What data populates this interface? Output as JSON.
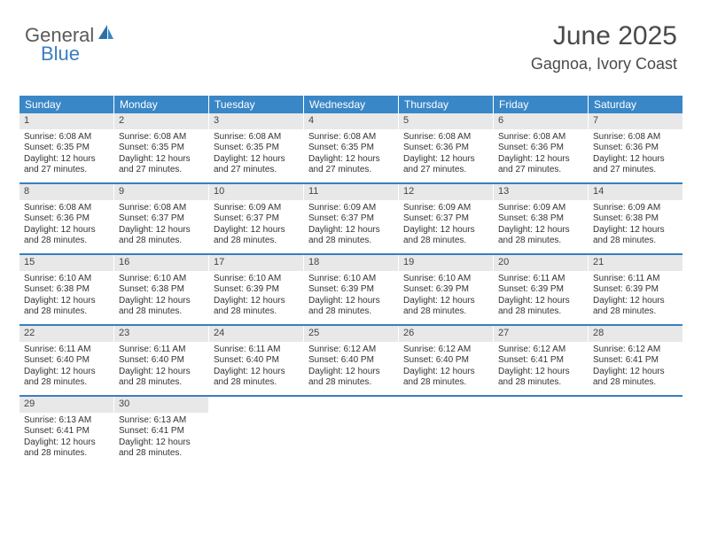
{
  "logo": {
    "general": "General",
    "blue": "Blue"
  },
  "header": {
    "month": "June 2025",
    "location": "Gagnoa, Ivory Coast"
  },
  "colors": {
    "header_bg": "#3a87c7",
    "header_text": "#ffffff",
    "daynum_bg": "#e8e8e8",
    "divider": "#3a7fbf",
    "logo_blue": "#3a7fbf",
    "text": "#333333"
  },
  "dow": [
    "Sunday",
    "Monday",
    "Tuesday",
    "Wednesday",
    "Thursday",
    "Friday",
    "Saturday"
  ],
  "weeks": [
    [
      {
        "n": "1",
        "sr": "6:08 AM",
        "ss": "6:35 PM",
        "dl": "12 hours and 27 minutes."
      },
      {
        "n": "2",
        "sr": "6:08 AM",
        "ss": "6:35 PM",
        "dl": "12 hours and 27 minutes."
      },
      {
        "n": "3",
        "sr": "6:08 AM",
        "ss": "6:35 PM",
        "dl": "12 hours and 27 minutes."
      },
      {
        "n": "4",
        "sr": "6:08 AM",
        "ss": "6:35 PM",
        "dl": "12 hours and 27 minutes."
      },
      {
        "n": "5",
        "sr": "6:08 AM",
        "ss": "6:36 PM",
        "dl": "12 hours and 27 minutes."
      },
      {
        "n": "6",
        "sr": "6:08 AM",
        "ss": "6:36 PM",
        "dl": "12 hours and 27 minutes."
      },
      {
        "n": "7",
        "sr": "6:08 AM",
        "ss": "6:36 PM",
        "dl": "12 hours and 27 minutes."
      }
    ],
    [
      {
        "n": "8",
        "sr": "6:08 AM",
        "ss": "6:36 PM",
        "dl": "12 hours and 28 minutes."
      },
      {
        "n": "9",
        "sr": "6:08 AM",
        "ss": "6:37 PM",
        "dl": "12 hours and 28 minutes."
      },
      {
        "n": "10",
        "sr": "6:09 AM",
        "ss": "6:37 PM",
        "dl": "12 hours and 28 minutes."
      },
      {
        "n": "11",
        "sr": "6:09 AM",
        "ss": "6:37 PM",
        "dl": "12 hours and 28 minutes."
      },
      {
        "n": "12",
        "sr": "6:09 AM",
        "ss": "6:37 PM",
        "dl": "12 hours and 28 minutes."
      },
      {
        "n": "13",
        "sr": "6:09 AM",
        "ss": "6:38 PM",
        "dl": "12 hours and 28 minutes."
      },
      {
        "n": "14",
        "sr": "6:09 AM",
        "ss": "6:38 PM",
        "dl": "12 hours and 28 minutes."
      }
    ],
    [
      {
        "n": "15",
        "sr": "6:10 AM",
        "ss": "6:38 PM",
        "dl": "12 hours and 28 minutes."
      },
      {
        "n": "16",
        "sr": "6:10 AM",
        "ss": "6:38 PM",
        "dl": "12 hours and 28 minutes."
      },
      {
        "n": "17",
        "sr": "6:10 AM",
        "ss": "6:39 PM",
        "dl": "12 hours and 28 minutes."
      },
      {
        "n": "18",
        "sr": "6:10 AM",
        "ss": "6:39 PM",
        "dl": "12 hours and 28 minutes."
      },
      {
        "n": "19",
        "sr": "6:10 AM",
        "ss": "6:39 PM",
        "dl": "12 hours and 28 minutes."
      },
      {
        "n": "20",
        "sr": "6:11 AM",
        "ss": "6:39 PM",
        "dl": "12 hours and 28 minutes."
      },
      {
        "n": "21",
        "sr": "6:11 AM",
        "ss": "6:39 PM",
        "dl": "12 hours and 28 minutes."
      }
    ],
    [
      {
        "n": "22",
        "sr": "6:11 AM",
        "ss": "6:40 PM",
        "dl": "12 hours and 28 minutes."
      },
      {
        "n": "23",
        "sr": "6:11 AM",
        "ss": "6:40 PM",
        "dl": "12 hours and 28 minutes."
      },
      {
        "n": "24",
        "sr": "6:11 AM",
        "ss": "6:40 PM",
        "dl": "12 hours and 28 minutes."
      },
      {
        "n": "25",
        "sr": "6:12 AM",
        "ss": "6:40 PM",
        "dl": "12 hours and 28 minutes."
      },
      {
        "n": "26",
        "sr": "6:12 AM",
        "ss": "6:40 PM",
        "dl": "12 hours and 28 minutes."
      },
      {
        "n": "27",
        "sr": "6:12 AM",
        "ss": "6:41 PM",
        "dl": "12 hours and 28 minutes."
      },
      {
        "n": "28",
        "sr": "6:12 AM",
        "ss": "6:41 PM",
        "dl": "12 hours and 28 minutes."
      }
    ],
    [
      {
        "n": "29",
        "sr": "6:13 AM",
        "ss": "6:41 PM",
        "dl": "12 hours and 28 minutes."
      },
      {
        "n": "30",
        "sr": "6:13 AM",
        "ss": "6:41 PM",
        "dl": "12 hours and 28 minutes."
      },
      null,
      null,
      null,
      null,
      null
    ]
  ],
  "labels": {
    "sunrise": "Sunrise:",
    "sunset": "Sunset:",
    "daylight": "Daylight:"
  }
}
